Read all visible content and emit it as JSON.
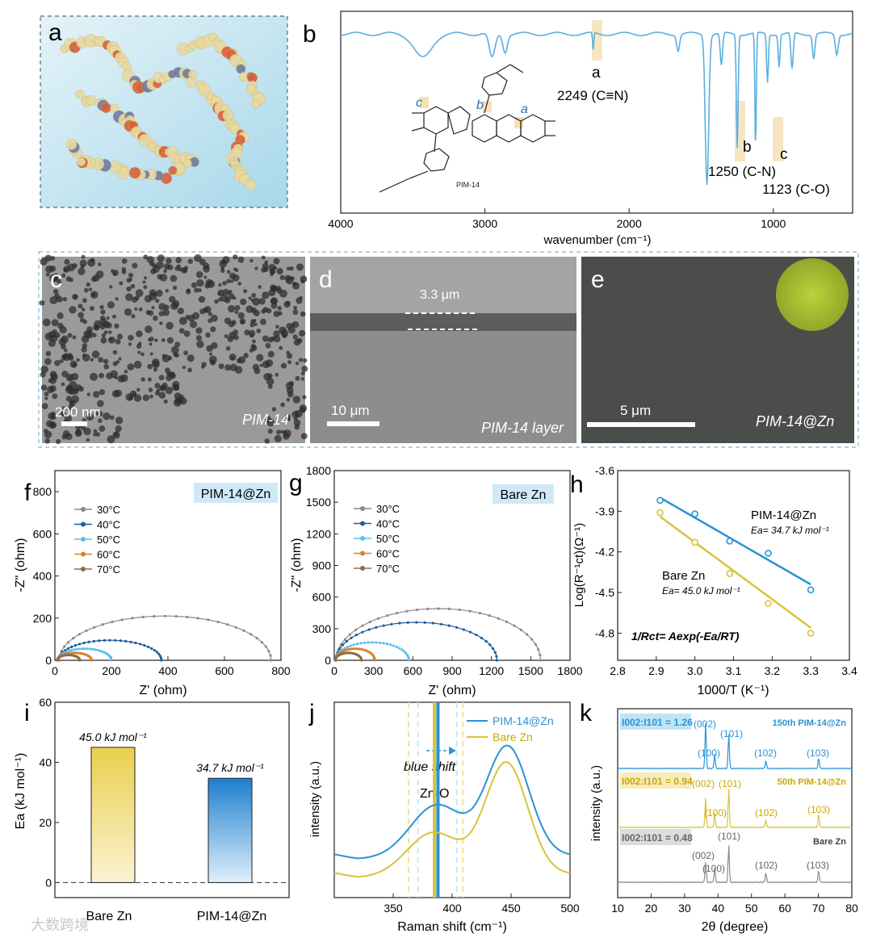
{
  "panel_labels": {
    "a": "a",
    "b": "b",
    "c": "c",
    "d": "d",
    "e": "e",
    "f": "f",
    "g": "g",
    "h": "h",
    "i": "i",
    "j": "j",
    "k": "k"
  },
  "colors": {
    "blue": "#2a93d5",
    "darkblue": "#1d5d9b",
    "lightblue": "#5cc0ea",
    "orange": "#d9822b",
    "brown": "#8c6e46",
    "gray": "#8a8a8a",
    "yellow": "#d8c43a",
    "ftir": "#5aaee0"
  },
  "panel_b": {
    "xlabel": "wavenumber (cm⁻¹)",
    "ticks": [
      "4000",
      "3000",
      "2000",
      "1000"
    ],
    "peaks": [
      {
        "letter": "a",
        "label": "2249 (C≡N)"
      },
      {
        "letter": "b",
        "label": "1250 (C-N)"
      },
      {
        "letter": "c",
        "label": "1123 (C-O)"
      }
    ],
    "molecule_name": "PIM-14",
    "molecule_sites": [
      "c",
      "b",
      "a"
    ]
  },
  "panel_c": {
    "scale": "200 nm",
    "caption": "PIM-14"
  },
  "panel_d": {
    "thickness": "3.3 μm",
    "scale": "10 μm",
    "caption": "PIM-14 layer"
  },
  "panel_e": {
    "scale": "5 μm",
    "caption": "PIM-14@Zn"
  },
  "chart_data": [
    {
      "id": "f",
      "type": "scatter",
      "title": "PIM-14@Zn",
      "xlabel": "Z' (ohm)",
      "ylabel": "-Z\" (ohm)",
      "xlim": [
        0,
        800
      ],
      "ylim": [
        0,
        900
      ],
      "xticks": [
        "0",
        "200",
        "400",
        "600",
        "800"
      ],
      "yticks": [
        "0",
        "200",
        "400",
        "600",
        "800"
      ],
      "legend": [
        "30°C",
        "40°C",
        "50°C",
        "60°C",
        "70°C"
      ],
      "series": [
        {
          "name": "30°C",
          "r0": 15,
          "diameter": 750,
          "peak": 210
        },
        {
          "name": "40°C",
          "r0": 12,
          "diameter": 365,
          "peak": 95
        },
        {
          "name": "50°C",
          "r0": 10,
          "diameter": 190,
          "peak": 55
        },
        {
          "name": "60°C",
          "r0": 10,
          "diameter": 120,
          "peak": 35
        },
        {
          "name": "70°C",
          "r0": 8,
          "diameter": 80,
          "peak": 25
        }
      ]
    },
    {
      "id": "g",
      "type": "scatter",
      "title": "Bare Zn",
      "xlabel": "Z' (ohm)",
      "ylabel": "-Z\" (ohm)",
      "xlim": [
        0,
        1800
      ],
      "ylim": [
        0,
        1800
      ],
      "xticks": [
        "0",
        "300",
        "600",
        "900",
        "1200",
        "1500",
        "1800"
      ],
      "yticks": [
        "0",
        "300",
        "600",
        "900",
        "1200",
        "1500",
        "1800"
      ],
      "legend": [
        "30°C",
        "40°C",
        "50°C",
        "60°C",
        "70°C"
      ],
      "series": [
        {
          "name": "30°C",
          "r0": 15,
          "diameter": 1560,
          "peak": 490
        },
        {
          "name": "40°C",
          "r0": 12,
          "diameter": 1230,
          "peak": 360
        },
        {
          "name": "50°C",
          "r0": 10,
          "diameter": 560,
          "peak": 170
        },
        {
          "name": "60°C",
          "r0": 10,
          "diameter": 300,
          "peak": 110
        },
        {
          "name": "70°C",
          "r0": 8,
          "diameter": 200,
          "peak": 70
        }
      ]
    },
    {
      "id": "h",
      "type": "scatter",
      "xlabel": "1000/T (K⁻¹)",
      "ylabel": "Log(R⁻¹ct)(Ω⁻¹)",
      "xlim": [
        2.8,
        3.4
      ],
      "ylim": [
        -5.0,
        -3.6
      ],
      "xticks": [
        "2.8",
        "2.9",
        "3.0",
        "3.1",
        "3.2",
        "3.3",
        "3.4"
      ],
      "yticks": [
        "-3.6",
        "-3.9",
        "-4.2",
        "-4.5",
        "-4.8"
      ],
      "equation": "1/Rct= Aexp(-Ea/RT)",
      "series": [
        {
          "name": "PIM-14@Zn",
          "ea": "Ea= 34.7 kJ mol⁻¹",
          "x": [
            2.91,
            3.0,
            3.09,
            3.19,
            3.3
          ],
          "y": [
            -3.82,
            -3.92,
            -4.12,
            -4.21,
            -4.48
          ],
          "fit": [
            [
              2.91,
              -3.8
            ],
            [
              3.3,
              -4.44
            ]
          ]
        },
        {
          "name": "Bare Zn",
          "ea": "Ea= 45.0 kJ mol⁻¹",
          "x": [
            2.91,
            3.0,
            3.09,
            3.19,
            3.3
          ],
          "y": [
            -3.91,
            -4.13,
            -4.36,
            -4.58,
            -4.8
          ],
          "fit": [
            [
              2.91,
              -3.94
            ],
            [
              3.3,
              -4.76
            ]
          ]
        }
      ]
    },
    {
      "id": "i",
      "type": "bar",
      "ylabel": "Ea (kJ mol⁻¹)",
      "ylim": [
        -5,
        60
      ],
      "yticks": [
        "0",
        "20",
        "40",
        "60"
      ],
      "categories": [
        "Bare Zn",
        "PIM-14@Zn"
      ],
      "values": [
        45.0,
        34.7
      ],
      "value_labels": [
        "45.0 kJ mol⁻¹",
        "34.7 kJ mol⁻¹"
      ]
    },
    {
      "id": "j",
      "type": "line",
      "xlabel": "Raman shift (cm⁻¹)",
      "ylabel": "intensity (a.u.)",
      "xlim": [
        300,
        500
      ],
      "xticks": [
        "350",
        "400",
        "450",
        "500"
      ],
      "legend": [
        "PIM-14@Zn",
        "Bare Zn"
      ],
      "annotations": {
        "shift": "blue shift",
        "band": "Zn-O"
      }
    },
    {
      "id": "k",
      "type": "line",
      "xlabel": "2θ (degree)",
      "ylabel": "intensity (a.u.)",
      "xlim": [
        10,
        80
      ],
      "xticks": [
        "10",
        "20",
        "30",
        "40",
        "50",
        "60",
        "70",
        "80"
      ],
      "traces": [
        {
          "ratio": "I002:I101 = 1.26",
          "sample": "150th PIM-14@Zn"
        },
        {
          "ratio": "I002:I101 = 0.94",
          "sample": "50th PIM-14@Zn"
        },
        {
          "ratio": "I002:I101 = 0.48",
          "sample": "Bare Zn"
        }
      ],
      "peaks": [
        {
          "label": "(002)",
          "x": 36.3
        },
        {
          "label": "(100)",
          "x": 39.0
        },
        {
          "label": "(101)",
          "x": 43.2
        },
        {
          "label": "(102)",
          "x": 54.3
        },
        {
          "label": "(103)",
          "x": 70.1
        }
      ]
    }
  ],
  "watermark": "大数跨境"
}
